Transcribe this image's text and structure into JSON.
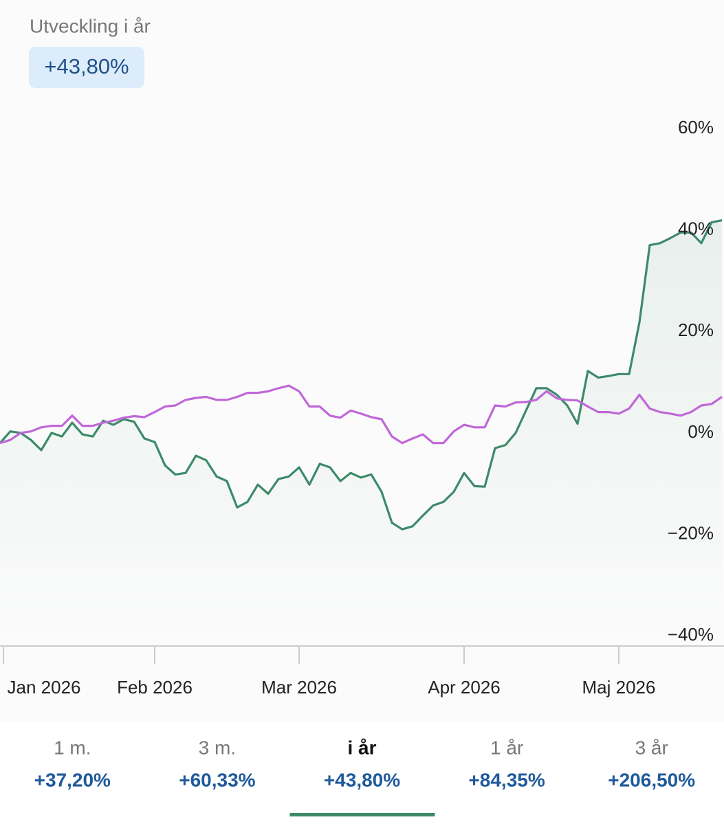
{
  "header": {
    "title": "Utveckling i år",
    "badge": "+43,80%"
  },
  "chart_data": {
    "type": "line",
    "categories": [
      "Jan 2026",
      null,
      null,
      null,
      null,
      null,
      null,
      null,
      null,
      null,
      null,
      null,
      null,
      null,
      null,
      "Feb 2026",
      null,
      null,
      null,
      null,
      null,
      null,
      null,
      null,
      null,
      null,
      null,
      null,
      null,
      "Mar 2026",
      null,
      null,
      null,
      null,
      null,
      null,
      null,
      null,
      null,
      null,
      null,
      null,
      null,
      null,
      null,
      "Apr 2026",
      null,
      null,
      null,
      null,
      null,
      null,
      null,
      null,
      null,
      null,
      null,
      null,
      null,
      null,
      "Maj 2026",
      null,
      null,
      null,
      null,
      null,
      null,
      null,
      null,
      null,
      null
    ],
    "series": [
      {
        "color": "#3d8a6a",
        "fill": true,
        "values": [
          -2,
          0.3,
          0,
          -1.4,
          -3.4,
          0,
          -0.7,
          2,
          -0.3,
          -0.7,
          2.4,
          1.6,
          2.7,
          2.2,
          -1.1,
          -1.8,
          -6.4,
          -8.2,
          -7.9,
          -4.5,
          -5.4,
          -8.6,
          -9.5,
          -14.7,
          -13.6,
          -10.2,
          -12,
          -9.1,
          -8.6,
          -6.8,
          -10.2,
          -6.1,
          -6.8,
          -9.5,
          -7.9,
          -8.8,
          -8.2,
          -11.6,
          -17.7,
          -19,
          -18.4,
          -16.3,
          -14.3,
          -13.6,
          -11.6,
          -7.9,
          -10.5,
          -10.6,
          -3,
          -2.4,
          0,
          4.4,
          8.8,
          8.8,
          7.5,
          5.4,
          1.8,
          12.2,
          10.9,
          11.2,
          11.6,
          11.6,
          21.8,
          37,
          37.4,
          38.4,
          39.5,
          39.5,
          37.4,
          41.5,
          41.9
        ]
      },
      {
        "color": "#c067d8",
        "fill": false,
        "values": [
          -2,
          -1.4,
          0,
          0.3,
          1.1,
          1.4,
          1.4,
          3.4,
          1.4,
          1.4,
          2,
          2.4,
          3,
          3.3,
          3.1,
          4.1,
          5.2,
          5.4,
          6.5,
          6.9,
          7.1,
          6.5,
          6.5,
          7.1,
          7.9,
          7.9,
          8.2,
          8.8,
          9.3,
          8.2,
          5.2,
          5.2,
          3.4,
          3,
          4.4,
          3.8,
          3.1,
          2.7,
          -0.7,
          -2,
          -1.1,
          -0.3,
          -2,
          -2,
          0.3,
          1.6,
          1.1,
          1.1,
          5.4,
          5.2,
          6,
          6.1,
          6.5,
          8.2,
          6.8,
          6.5,
          6.4,
          5.2,
          4.1,
          4.1,
          3.8,
          4.8,
          7.5,
          4.8,
          4.1,
          3.8,
          3.4,
          4.1,
          5.4,
          5.7,
          7.1
        ]
      }
    ],
    "ylim": [
      -42,
      65
    ],
    "yticks": [
      {
        "value": 60,
        "label": "60%"
      },
      {
        "value": 40,
        "label": "40%"
      },
      {
        "value": 20,
        "label": "20%"
      },
      {
        "value": 0,
        "label": "0%"
      },
      {
        "value": -20,
        "label": "−20%"
      },
      {
        "value": -40,
        "label": "−40%"
      }
    ]
  },
  "tabs": {
    "selected": 2,
    "items": [
      {
        "label": "1 m.",
        "change": "+37,20%"
      },
      {
        "label": "3 m.",
        "change": "+60,33%"
      },
      {
        "label": "i år",
        "change": "+43,80%"
      },
      {
        "label": "1 år",
        "change": "+84,35%"
      },
      {
        "label": "3 år",
        "change": "+206,50%"
      }
    ]
  }
}
